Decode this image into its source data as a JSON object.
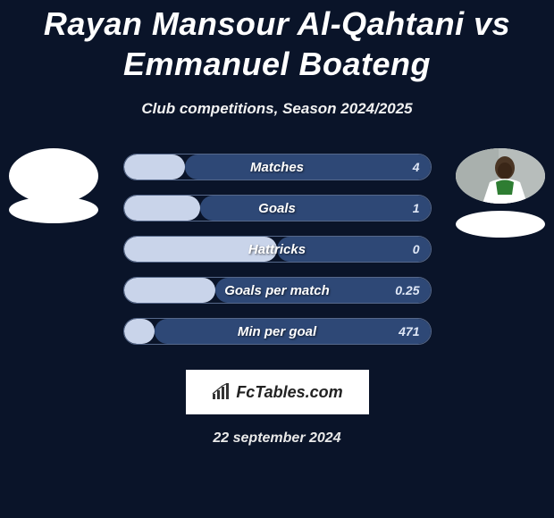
{
  "title": "Rayan Mansour Al-Qahtani vs Emmanuel Boateng",
  "subtitle": "Club competitions, Season 2024/2025",
  "date": "22 september 2024",
  "logo_text": "FcTables.com",
  "colors": {
    "background": "#0a1429",
    "bar_border": "#56688a",
    "fill_left": "#c9d4ea",
    "fill_right": "#2e4876",
    "text": "#ffffff"
  },
  "players": {
    "left": {
      "name": "Rayan Mansour Al-Qahtani",
      "avatar_bg": "#ffffff"
    },
    "right": {
      "name": "Emmanuel Boateng",
      "avatar_bg": "#b9c0bf"
    }
  },
  "bars": [
    {
      "label": "Matches",
      "left_value": "",
      "right_value": "4",
      "left_pct": 0.2,
      "right_pct": 0.8
    },
    {
      "label": "Goals",
      "left_value": "",
      "right_value": "1",
      "left_pct": 0.25,
      "right_pct": 0.75
    },
    {
      "label": "Hattricks",
      "left_value": "",
      "right_value": "0",
      "left_pct": 0.5,
      "right_pct": 0.5
    },
    {
      "label": "Goals per match",
      "left_value": "",
      "right_value": "0.25",
      "left_pct": 0.3,
      "right_pct": 0.7
    },
    {
      "label": "Min per goal",
      "left_value": "",
      "right_value": "471",
      "left_pct": 0.1,
      "right_pct": 0.9
    }
  ]
}
